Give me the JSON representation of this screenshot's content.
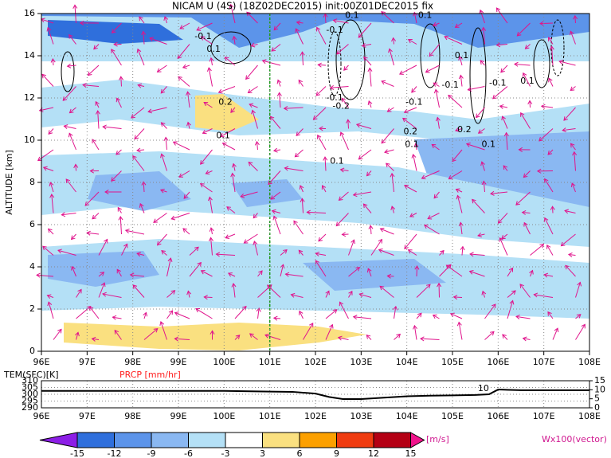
{
  "chart_data": {
    "type": "vertical-section",
    "title": "NICAM U (4S) (18Z02DEC2015) init:00Z01DEC2015 fix",
    "y_label": "ALTITUDE [km]",
    "xlim": [
      96,
      108
    ],
    "ylim": [
      0,
      16
    ],
    "xticks": [
      {
        "value": 96,
        "label": "96E"
      },
      {
        "value": 97,
        "label": "97E"
      },
      {
        "value": 98,
        "label": "98E"
      },
      {
        "value": 99,
        "label": "99E"
      },
      {
        "value": 100,
        "label": "100E"
      },
      {
        "value": 101,
        "label": "101E"
      },
      {
        "value": 102,
        "label": "102E"
      },
      {
        "value": 103,
        "label": "103E"
      },
      {
        "value": 104,
        "label": "104E"
      },
      {
        "value": 105,
        "label": "105E"
      },
      {
        "value": 106,
        "label": "106E"
      },
      {
        "value": 107,
        "label": "107E"
      },
      {
        "value": 108,
        "label": "108E"
      }
    ],
    "yticks": [
      0,
      2,
      4,
      6,
      8,
      10,
      12,
      14,
      16
    ],
    "grid": true,
    "annotations": [
      {
        "text": "-0.1",
        "x": 99.54,
        "y": 14.9
      },
      {
        "text": "0.1",
        "x": 99.77,
        "y": 14.3
      },
      {
        "text": "0.2",
        "x": 100.03,
        "y": 11.8
      },
      {
        "text": "0.1",
        "x": 99.98,
        "y": 10.2
      },
      {
        "text": "-0.1",
        "x": 102.42,
        "y": 15.2
      },
      {
        "text": "-0.1",
        "x": 102.42,
        "y": 12.0
      },
      {
        "text": "-0.2",
        "x": 102.56,
        "y": 11.6
      },
      {
        "text": "0.1",
        "x": 102.47,
        "y": 9.0
      },
      {
        "text": "0.2",
        "x": 104.08,
        "y": 10.4
      },
      {
        "text": "0.1",
        "x": 104.11,
        "y": 9.8
      },
      {
        "text": "-0.1",
        "x": 104.16,
        "y": 11.8
      },
      {
        "text": "0.2",
        "x": 105.26,
        "y": 10.5
      },
      {
        "text": "0.1",
        "x": 105.79,
        "y": 9.8
      },
      {
        "text": "-0.1",
        "x": 104.95,
        "y": 12.6
      },
      {
        "text": "-0.1",
        "x": 105.99,
        "y": 12.7
      },
      {
        "text": "0.1",
        "x": 106.64,
        "y": 12.8
      },
      {
        "text": "0.1",
        "x": 105.2,
        "y": 14.0
      },
      {
        "text": "0.1",
        "x": 102.8,
        "y": 15.9
      },
      {
        "text": "0.1",
        "x": 104.4,
        "y": 15.9
      }
    ],
    "colorbar": {
      "levels": [
        -15,
        -12,
        -9,
        -6,
        -3,
        3,
        6,
        9,
        12,
        15
      ],
      "colors": [
        "#8c1ee6",
        "#2f6fdc",
        "#5c94ea",
        "#8ab8f2",
        "#b4e0f6",
        "#ffffff",
        "#fae080",
        "#fca000",
        "#f03c10",
        "#b40014",
        "#f0148c"
      ],
      "unit": "[m/s]"
    },
    "vector_label": "Wx100(vector)",
    "bottom_panel": {
      "left_label": "TEM(SFC)[K]",
      "right_label": "PRCP [mm/hr]",
      "ylim": [
        290,
        310
      ],
      "yticks": [
        290,
        295,
        300,
        305,
        310
      ],
      "y2lim": [
        0,
        15
      ],
      "y2ticks": [
        0,
        5,
        10,
        15
      ],
      "series": [
        {
          "name": "TEM(SFC)[K]",
          "color": "#000000",
          "x": [
            96,
            97,
            98,
            99,
            100,
            101,
            101.5,
            102,
            102.3,
            102.6,
            103,
            103.5,
            104,
            104.5,
            105,
            105.5,
            105.8,
            106,
            106.5,
            107,
            108
          ],
          "values": [
            302.5,
            302.5,
            302.5,
            302.5,
            302.5,
            302,
            301.8,
            300.5,
            298,
            296.5,
            296.5,
            297.5,
            298.5,
            299,
            299.2,
            299.5,
            300,
            303.5,
            303,
            303,
            303
          ]
        },
        {
          "name": "PRCP [mm/hr]",
          "color": "#ff2020",
          "axis": "y2",
          "x": [
            96,
            108
          ],
          "values": [
            0,
            0
          ]
        }
      ],
      "annotations": [
        {
          "text": "10",
          "x": 105.8,
          "y": 10.5
        }
      ]
    }
  }
}
